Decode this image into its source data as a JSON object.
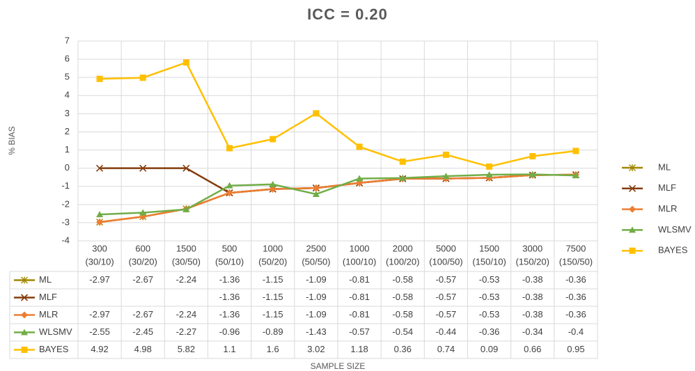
{
  "chart_data": {
    "type": "line",
    "title": "ICC = 0.20",
    "x_label": "SAMPLE SIZE",
    "y_label": "% BIAS",
    "categories": [
      [
        "300",
        "(30/10)"
      ],
      [
        "600",
        "(30/20)"
      ],
      [
        "1500",
        "(30/50)"
      ],
      [
        "500",
        "(50/10)"
      ],
      [
        "1000",
        "(50/20)"
      ],
      [
        "2500",
        "(50/50)"
      ],
      [
        "1000",
        "(100/10)"
      ],
      [
        "2000",
        "(100/20)"
      ],
      [
        "5000",
        "(100/50)"
      ],
      [
        "1500",
        "(150/10)"
      ],
      [
        "3000",
        "(150/20)"
      ],
      [
        "7500",
        "(150/50)"
      ]
    ],
    "series": [
      {
        "name": "ML",
        "color": "#a08600",
        "marker": "asterisk",
        "values": [
          -2.97,
          -2.67,
          -2.24,
          -1.36,
          -1.15,
          -1.09,
          -0.81,
          -0.58,
          -0.57,
          -0.53,
          -0.38,
          -0.36
        ]
      },
      {
        "name": "MLF",
        "color": "#843c0c",
        "marker": "x",
        "values": [
          null,
          null,
          null,
          -1.36,
          -1.15,
          -1.09,
          -0.81,
          -0.58,
          -0.57,
          -0.53,
          -0.38,
          -0.36
        ]
      },
      {
        "name": "MLR",
        "color": "#ed7d31",
        "marker": "diamond",
        "values": [
          -2.97,
          -2.67,
          -2.24,
          -1.36,
          -1.15,
          -1.09,
          -0.81,
          -0.58,
          -0.57,
          -0.53,
          -0.38,
          -0.36
        ]
      },
      {
        "name": "WLSMV",
        "color": "#70ad47",
        "marker": "triangle",
        "values": [
          -2.55,
          -2.45,
          -2.27,
          -0.96,
          -0.89,
          -1.43,
          -0.57,
          -0.54,
          -0.44,
          -0.36,
          -0.34,
          -0.4
        ]
      },
      {
        "name": "BAYES",
        "color": "#ffc000",
        "marker": "square",
        "values": [
          4.92,
          4.98,
          5.82,
          1.1,
          1.6,
          3.02,
          1.18,
          0.36,
          0.74,
          0.09,
          0.66,
          0.95
        ]
      }
    ],
    "empty_cells": "zero",
    "ylim": [
      -4,
      7
    ],
    "yticks": [
      -4,
      -3,
      -2,
      -1,
      0,
      1,
      2,
      3,
      4,
      5,
      6,
      7
    ],
    "grid": true,
    "legend": "right",
    "data_table": true
  }
}
